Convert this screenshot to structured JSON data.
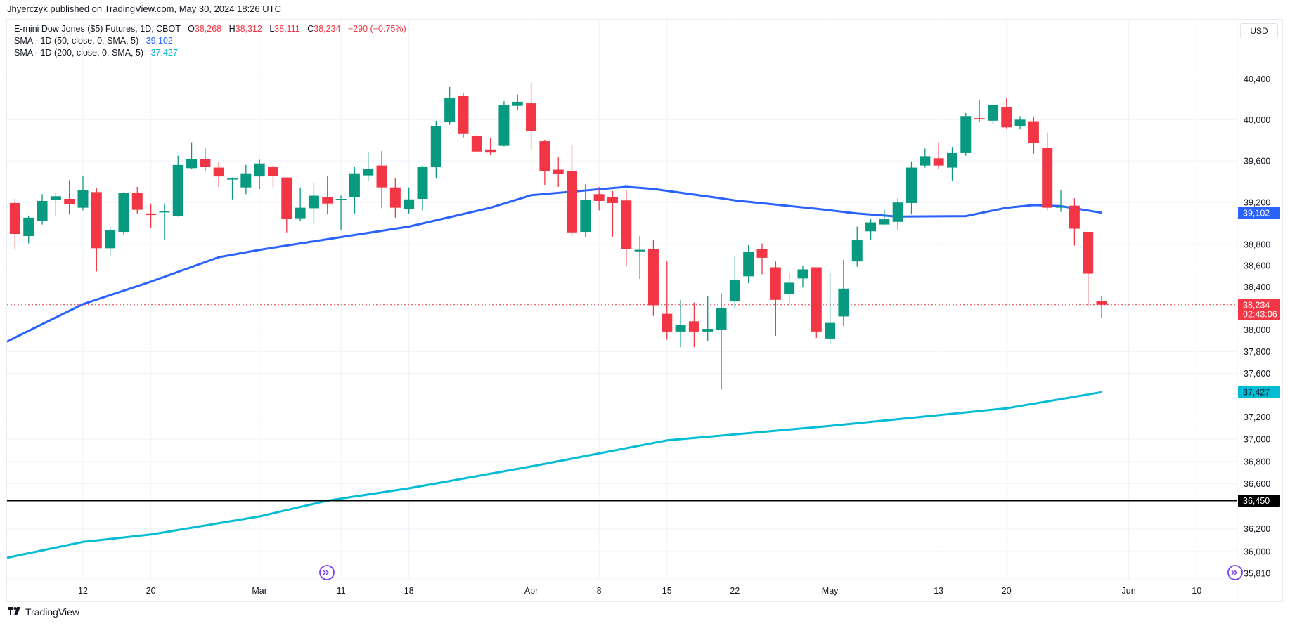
{
  "header": {
    "publisher": "Jhyerczyk published on TradingView.com, May 30, 2024 18:26 UTC"
  },
  "legend": {
    "symbol": "E-mini Dow Jones ($5) Futures, 1D, CBOT",
    "o_label": "O",
    "o": "38,268",
    "h_label": "H",
    "h": "38,312",
    "l_label": "L",
    "l": "38,111",
    "c_label": "C",
    "c": "38,234",
    "change": "−290 (−0.75%)",
    "sma50_label": "SMA · 1D (50, close, 0, SMA, 5)",
    "sma50_value": "39,102",
    "sma200_label": "SMA · 1D (200, close, 0, SMA, 5)",
    "sma200_value": "37,427"
  },
  "currency_button": "USD",
  "footer": {
    "brand": "TradingView",
    "logo_icon": "tradingview-logo-icon"
  },
  "colors": {
    "up": "#089981",
    "down": "#f23645",
    "sma50": "#2962ff",
    "sma200": "#00bcd4",
    "hline": "#000000",
    "marker": "#7b3ff2",
    "grid": "#f0f3fa"
  },
  "chart_data": {
    "type": "candlestick",
    "scale": "log",
    "grid": true,
    "candle_fields": [
      "date",
      "open",
      "high",
      "low",
      "close"
    ],
    "candles": [
      [
        "2024-02-05",
        39195,
        39235,
        38750,
        38900
      ],
      [
        "2024-02-06",
        38880,
        39075,
        38810,
        39055
      ],
      [
        "2024-02-07",
        39025,
        39280,
        38990,
        39215
      ],
      [
        "2024-02-08",
        39225,
        39290,
        39070,
        39260
      ],
      [
        "2024-02-09",
        39235,
        39415,
        39085,
        39185
      ],
      [
        "2024-02-12",
        39150,
        39450,
        39125,
        39320
      ],
      [
        "2024-02-13",
        39300,
        39335,
        38545,
        38765
      ],
      [
        "2024-02-14",
        38765,
        38970,
        38695,
        38935
      ],
      [
        "2024-02-15",
        38920,
        39300,
        38895,
        39295
      ],
      [
        "2024-02-16",
        39295,
        39350,
        39095,
        39130
      ],
      [
        "2024-02-20",
        39095,
        39190,
        38960,
        39080
      ],
      [
        "2024-02-21",
        39110,
        39190,
        38845,
        39115
      ],
      [
        "2024-02-22",
        39070,
        39650,
        39065,
        39560
      ],
      [
        "2024-02-23",
        39530,
        39780,
        39525,
        39620
      ],
      [
        "2024-02-26",
        39620,
        39720,
        39500,
        39545
      ],
      [
        "2024-02-27",
        39535,
        39590,
        39350,
        39450
      ],
      [
        "2024-02-28",
        39420,
        39440,
        39230,
        39430
      ],
      [
        "2024-02-29",
        39345,
        39560,
        39280,
        39480
      ],
      [
        "2024-03-01",
        39450,
        39610,
        39330,
        39575
      ],
      [
        "2024-03-04",
        39545,
        39560,
        39345,
        39455
      ],
      [
        "2024-03-05",
        39440,
        39440,
        38915,
        39045
      ],
      [
        "2024-03-06",
        39050,
        39345,
        39025,
        39150
      ],
      [
        "2024-03-07",
        39145,
        39385,
        38990,
        39265
      ],
      [
        "2024-03-08",
        39255,
        39450,
        39085,
        39190
      ],
      [
        "2024-03-11",
        39230,
        39265,
        38935,
        39235
      ],
      [
        "2024-03-12",
        39250,
        39545,
        39095,
        39480
      ],
      [
        "2024-03-13",
        39460,
        39680,
        39405,
        39520
      ],
      [
        "2024-03-14",
        39555,
        39695,
        39145,
        39345
      ],
      [
        "2024-03-15",
        39345,
        39430,
        39055,
        39150
      ],
      [
        "2024-03-18",
        39140,
        39345,
        39095,
        39230
      ],
      [
        "2024-03-19",
        39235,
        39555,
        39125,
        39540
      ],
      [
        "2024-03-20",
        39545,
        39990,
        39430,
        39940
      ],
      [
        "2024-03-21",
        39975,
        40320,
        39950,
        40210
      ],
      [
        "2024-03-22",
        40230,
        40265,
        39820,
        39860
      ],
      [
        "2024-03-25",
        39845,
        39850,
        39685,
        39690
      ],
      [
        "2024-03-26",
        39710,
        39820,
        39660,
        39680
      ],
      [
        "2024-03-27",
        39745,
        40180,
        39740,
        40145
      ],
      [
        "2024-03-28",
        40135,
        40245,
        40090,
        40175
      ],
      [
        "2024-04-01",
        40160,
        40365,
        39710,
        39890
      ],
      [
        "2024-04-02",
        39790,
        39805,
        39370,
        39505
      ],
      [
        "2024-04-03",
        39515,
        39635,
        39350,
        39475
      ],
      [
        "2024-04-04",
        39500,
        39755,
        38880,
        38915
      ],
      [
        "2024-04-05",
        38920,
        39375,
        38870,
        39225
      ],
      [
        "2024-04-08",
        39280,
        39350,
        39125,
        39215
      ],
      [
        "2024-04-09",
        39255,
        39310,
        38875,
        39195
      ],
      [
        "2024-04-10",
        39220,
        39320,
        38595,
        38760
      ],
      [
        "2024-04-11",
        38735,
        38880,
        38475,
        38750
      ],
      [
        "2024-04-12",
        38760,
        38840,
        38130,
        38230
      ],
      [
        "2024-04-15",
        38150,
        38640,
        37910,
        37985
      ],
      [
        "2024-04-16",
        37985,
        38280,
        37840,
        38045
      ],
      [
        "2024-04-17",
        38080,
        38255,
        37840,
        37985
      ],
      [
        "2024-04-18",
        37985,
        38315,
        37900,
        38010
      ],
      [
        "2024-04-19",
        38000,
        38340,
        37450,
        38205
      ],
      [
        "2024-04-22",
        38265,
        38690,
        38205,
        38465
      ],
      [
        "2024-04-23",
        38500,
        38795,
        38435,
        38730
      ],
      [
        "2024-04-24",
        38755,
        38810,
        38520,
        38675
      ],
      [
        "2024-04-25",
        38585,
        38640,
        37945,
        38280
      ],
      [
        "2024-04-26",
        38335,
        38530,
        38245,
        38440
      ],
      [
        "2024-04-29",
        38480,
        38595,
        38395,
        38565
      ],
      [
        "2024-04-30",
        38585,
        38585,
        37925,
        37985
      ],
      [
        "2024-05-01",
        37920,
        38535,
        37870,
        38065
      ],
      [
        "2024-05-02",
        38125,
        38655,
        38035,
        38385
      ],
      [
        "2024-05-03",
        38640,
        38970,
        38590,
        38840
      ],
      [
        "2024-05-06",
        38925,
        39040,
        38845,
        39010
      ],
      [
        "2024-05-07",
        38990,
        39130,
        38985,
        39040
      ],
      [
        "2024-05-08",
        39015,
        39240,
        38940,
        39200
      ],
      [
        "2024-05-09",
        39195,
        39595,
        39085,
        39535
      ],
      [
        "2024-05-10",
        39555,
        39720,
        39535,
        39645
      ],
      [
        "2024-05-13",
        39625,
        39780,
        39520,
        39555
      ],
      [
        "2024-05-14",
        39535,
        39735,
        39405,
        39675
      ],
      [
        "2024-05-15",
        39675,
        40065,
        39650,
        40035
      ],
      [
        "2024-05-16",
        40015,
        40190,
        39975,
        40010
      ],
      [
        "2024-05-17",
        39990,
        40145,
        39955,
        40140
      ],
      [
        "2024-05-20",
        40125,
        40210,
        39915,
        39925
      ],
      [
        "2024-05-21",
        39935,
        40035,
        39905,
        40000
      ],
      [
        "2024-05-22",
        39985,
        40025,
        39670,
        39775
      ],
      [
        "2024-05-23",
        39725,
        39875,
        39125,
        39150
      ],
      [
        "2024-05-24",
        39150,
        39315,
        39110,
        39160
      ],
      [
        "2024-05-28",
        39170,
        39240,
        38790,
        38950
      ],
      [
        "2024-05-29",
        38920,
        38920,
        38225,
        38525
      ],
      [
        "2024-05-30",
        38268,
        38312,
        38111,
        38234
      ]
    ],
    "sma50": [
      [
        "2024-02-05",
        37930
      ],
      [
        "2024-02-12",
        38240
      ],
      [
        "2024-02-20",
        38450
      ],
      [
        "2024-02-27",
        38680
      ],
      [
        "2024-03-01",
        38750
      ],
      [
        "2024-03-11",
        38870
      ],
      [
        "2024-03-18",
        38970
      ],
      [
        "2024-03-26",
        39150
      ],
      [
        "2024-04-01",
        39270
      ],
      [
        "2024-04-10",
        39350
      ],
      [
        "2024-04-12",
        39330
      ],
      [
        "2024-04-19",
        39240
      ],
      [
        "2024-04-22",
        39220
      ],
      [
        "2024-04-30",
        39140
      ],
      [
        "2024-05-03",
        39095
      ],
      [
        "2024-05-08",
        39065
      ],
      [
        "2024-05-15",
        39070
      ],
      [
        "2024-05-20",
        39150
      ],
      [
        "2024-05-22",
        39175
      ],
      [
        "2024-05-24",
        39165
      ],
      [
        "2024-05-30",
        39102
      ]
    ],
    "sma200": [
      [
        "2024-02-05",
        35960
      ],
      [
        "2024-02-12",
        36085
      ],
      [
        "2024-02-20",
        36150
      ],
      [
        "2024-03-01",
        36310
      ],
      [
        "2024-03-08",
        36450
      ],
      [
        "2024-03-18",
        36560
      ],
      [
        "2024-04-01",
        36755
      ],
      [
        "2024-04-15",
        36990
      ],
      [
        "2024-05-01",
        37120
      ],
      [
        "2024-05-20",
        37280
      ],
      [
        "2024-05-30",
        37427
      ]
    ],
    "horizontal_line": 36450,
    "last_price": 38234,
    "x_ticks": [
      {
        "label": "12",
        "date": "2024-02-12"
      },
      {
        "label": "20",
        "date": "2024-02-20"
      },
      {
        "label": "Mar",
        "date": "2024-03-01"
      },
      {
        "label": "11",
        "date": "2024-03-11"
      },
      {
        "label": "18",
        "date": "2024-03-18"
      },
      {
        "label": "Apr",
        "date": "2024-04-01"
      },
      {
        "label": "8",
        "date": "2024-04-08"
      },
      {
        "label": "15",
        "date": "2024-04-15"
      },
      {
        "label": "22",
        "date": "2024-04-22"
      },
      {
        "label": "May",
        "date": "2024-05-01"
      },
      {
        "label": "13",
        "date": "2024-05-13"
      },
      {
        "label": "20",
        "date": "2024-05-20"
      },
      {
        "label": "Jun",
        "date": "2024-06-03"
      },
      {
        "label": "10",
        "date": "2024-06-10"
      }
    ],
    "y_ticks": [
      {
        "label": "40,400",
        "value": 40400
      },
      {
        "label": "40,000",
        "value": 40000
      },
      {
        "label": "39,600",
        "value": 39600
      },
      {
        "label": "39,200",
        "value": 39200
      },
      {
        "label": "38,800",
        "value": 38800
      },
      {
        "label": "38,600",
        "value": 38600
      },
      {
        "label": "38,400",
        "value": 38400
      },
      {
        "label": "38,000",
        "value": 38000
      },
      {
        "label": "37,800",
        "value": 37800
      },
      {
        "label": "37,600",
        "value": 37600
      },
      {
        "label": "37,200",
        "value": 37200
      },
      {
        "label": "37,000",
        "value": 37000
      },
      {
        "label": "36,800",
        "value": 36800
      },
      {
        "label": "36,600",
        "value": 36600
      },
      {
        "label": "36,200",
        "value": 36200
      },
      {
        "label": "36,000",
        "value": 36000
      }
    ],
    "axis_labels": {
      "sma50": {
        "text": "39,102",
        "value": 39102
      },
      "last": {
        "text": "38,234",
        "countdown": "02:43:06",
        "value": 38234
      },
      "sma200": {
        "text": "37,427",
        "value": 37427
      },
      "hline": {
        "text": "36,450",
        "value": 36450
      },
      "bottom": {
        "text": "35,810",
        "value": 35810
      }
    }
  }
}
